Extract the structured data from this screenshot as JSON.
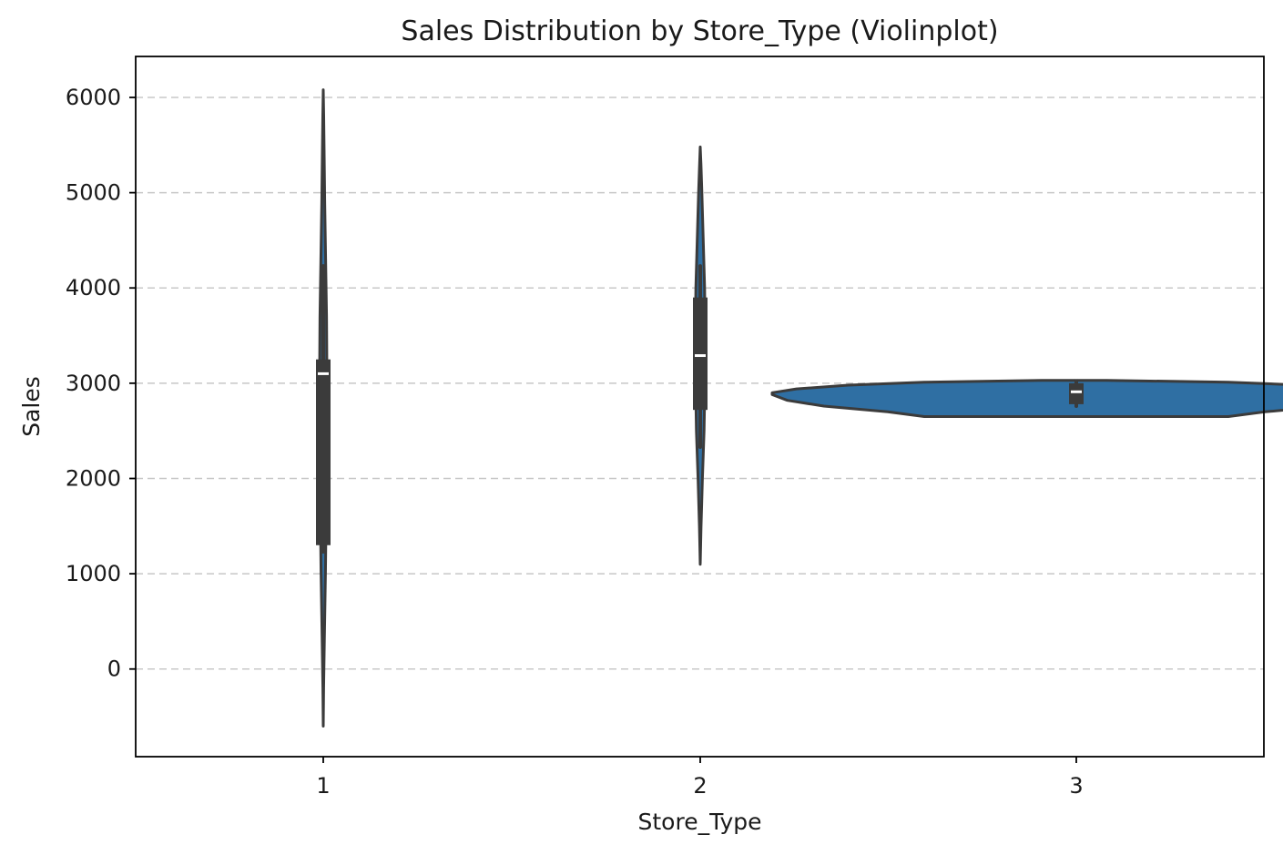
{
  "chart_data": {
    "type": "violin",
    "title": "Sales Distribution by Store_Type (Violinplot)",
    "xlabel": "Store_Type",
    "ylabel": "Sales",
    "categories": [
      "1",
      "2",
      "3"
    ],
    "ylim": [
      -920,
      6430
    ],
    "yticks": [
      "0",
      "1000",
      "2000",
      "3000",
      "4000",
      "5000",
      "6000"
    ],
    "grid": "horizontal-dashed",
    "legend": "none",
    "colors": {
      "violin_fill": "#2f6fa3",
      "inner_box": "#3b3b3b",
      "median": "#ffffff",
      "grid": "#c8c8c8"
    },
    "violins": [
      {
        "category": "1",
        "min": -600,
        "max": 6080,
        "q1": 1300,
        "median": 3100,
        "q3": 3250,
        "whisker_low": 1230,
        "whisker_high": 4230,
        "density": [
          [
            -600,
            0.0
          ],
          [
            -200,
            0.02
          ],
          [
            300,
            0.06
          ],
          [
            1000,
            0.12
          ],
          [
            2000,
            0.18
          ],
          [
            2500,
            0.19
          ],
          [
            3100,
            0.2
          ],
          [
            3700,
            0.18
          ],
          [
            4300,
            0.13
          ],
          [
            4900,
            0.08
          ],
          [
            5400,
            0.05
          ],
          [
            5800,
            0.025
          ],
          [
            6080,
            0.0
          ]
        ]
      },
      {
        "category": "2",
        "min": 1100,
        "max": 5480,
        "q1": 2720,
        "median": 3290,
        "q3": 3900,
        "whisker_low": 2330,
        "whisker_high": 4230,
        "density": [
          [
            1100,
            0.0
          ],
          [
            1500,
            0.03
          ],
          [
            2000,
            0.08
          ],
          [
            2500,
            0.14
          ],
          [
            3000,
            0.17
          ],
          [
            3500,
            0.18
          ],
          [
            4000,
            0.16
          ],
          [
            4500,
            0.11
          ],
          [
            5000,
            0.06
          ],
          [
            5300,
            0.025
          ],
          [
            5480,
            0.0
          ]
        ]
      },
      {
        "category": "3",
        "min": 2650,
        "max": 3030,
        "q1": 2780,
        "median": 2910,
        "q3": 3000,
        "whisker_low": 2760,
        "whisker_high": 3020,
        "density": [
          [
            2650,
            0.5
          ],
          [
            2700,
            0.62
          ],
          [
            2760,
            0.83
          ],
          [
            2820,
            0.95
          ],
          [
            2880,
            1.0
          ],
          [
            2900,
            1.0
          ],
          [
            2940,
            0.92
          ],
          [
            2980,
            0.75
          ],
          [
            3010,
            0.5
          ],
          [
            3030,
            0.1
          ]
        ]
      }
    ]
  }
}
